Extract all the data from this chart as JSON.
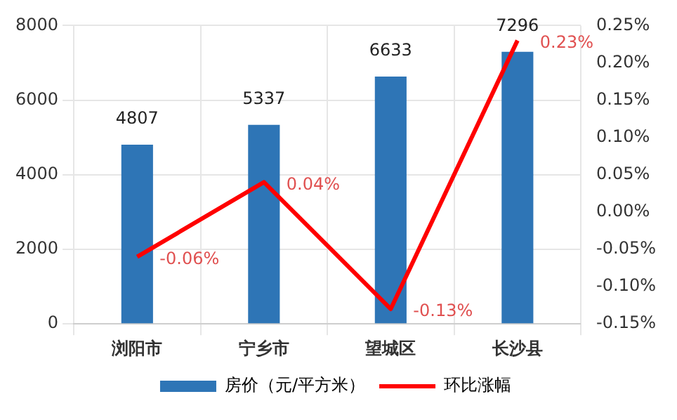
{
  "chart_data": {
    "type": "bar",
    "categories": [
      "浏阳市",
      "宁乡市",
      "望城区",
      "长沙县"
    ],
    "series": [
      {
        "name": "房价（元/平方米）",
        "color": "#2e75b6",
        "values": [
          4807,
          5337,
          6633,
          7296
        ],
        "value_labels": [
          "4807",
          "5337",
          "6633",
          "7296"
        ]
      },
      {
        "name": "环比涨幅",
        "type": "line",
        "axis": "y2",
        "color": "#ff0000",
        "values": [
          -0.06,
          0.04,
          -0.13,
          0.23
        ],
        "value_labels": [
          "-0.06%",
          "0.04%",
          "-0.13%",
          "0.23%"
        ],
        "marker": "none"
      }
    ],
    "ylim": [
      0,
      8000
    ],
    "yticks": [
      0,
      2000,
      4000,
      6000,
      8000
    ],
    "y2lim": [
      -0.15,
      0.25
    ],
    "y2ticks": [
      {
        "value": -0.15,
        "label": "-0.15%"
      },
      {
        "value": -0.1,
        "label": "-0.10%"
      },
      {
        "value": -0.05,
        "label": "-0.05%"
      },
      {
        "value": 0,
        "label": "0.00%"
      },
      {
        "value": 0.05,
        "label": "0.05%"
      },
      {
        "value": 0.1,
        "label": "0.10%"
      },
      {
        "value": 0.15,
        "label": "0.15%"
      },
      {
        "value": 0.2,
        "label": "0.20%"
      },
      {
        "value": 0.25,
        "label": "0.25%"
      }
    ],
    "grid": true,
    "legend": "bottom"
  }
}
